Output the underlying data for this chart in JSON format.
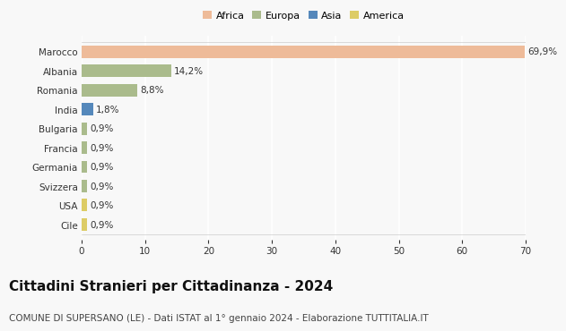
{
  "countries": [
    "Marocco",
    "Albania",
    "Romania",
    "India",
    "Bulgaria",
    "Francia",
    "Germania",
    "Svizzera",
    "USA",
    "Cile"
  ],
  "values": [
    69.9,
    14.2,
    8.8,
    1.8,
    0.9,
    0.9,
    0.9,
    0.9,
    0.9,
    0.9
  ],
  "labels": [
    "69,9%",
    "14,2%",
    "8,8%",
    "1,8%",
    "0,9%",
    "0,9%",
    "0,9%",
    "0,9%",
    "0,9%",
    "0,9%"
  ],
  "colors": [
    "#EEBB99",
    "#AABB8C",
    "#AABB8C",
    "#5588BB",
    "#AABB8C",
    "#AABB8C",
    "#AABB8C",
    "#AABB8C",
    "#DDCC66",
    "#DDCC66"
  ],
  "legend_labels": [
    "Africa",
    "Europa",
    "Asia",
    "America"
  ],
  "legend_colors": [
    "#EEBB99",
    "#AABB8C",
    "#5588BB",
    "#DDCC66"
  ],
  "xlim": [
    0,
    70
  ],
  "xticks": [
    0,
    10,
    20,
    30,
    40,
    50,
    60,
    70
  ],
  "title": "Cittadini Stranieri per Cittadinanza - 2024",
  "subtitle": "COMUNE DI SUPERSANO (LE) - Dati ISTAT al 1° gennaio 2024 - Elaborazione TUTTITALIA.IT",
  "background_color": "#f8f8f8",
  "grid_color": "#ffffff",
  "title_fontsize": 11,
  "subtitle_fontsize": 7.5,
  "label_fontsize": 7.5,
  "tick_fontsize": 7.5,
  "legend_fontsize": 8,
  "bar_height": 0.65
}
